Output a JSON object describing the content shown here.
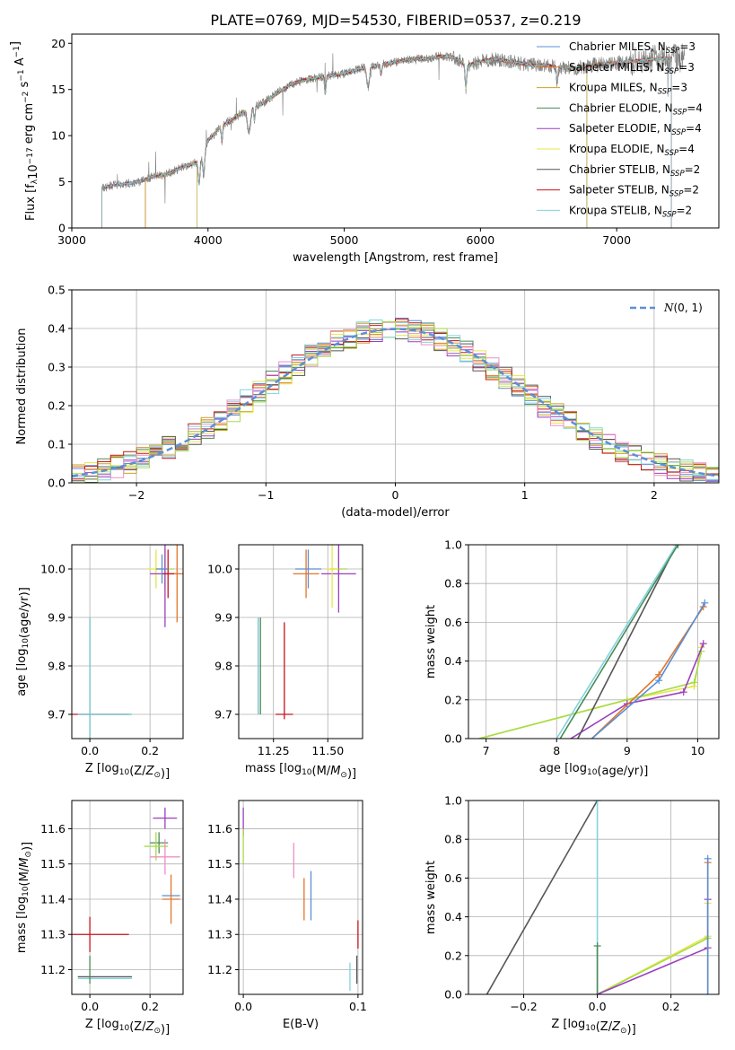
{
  "figure_title": "PLATE=0769, MJD=54530, FIBERID=0537, z=0.219",
  "colors": {
    "Chabrier MILES": "#5b8fd6",
    "Salpeter MILES": "#e3752a",
    "Kroupa MILES": "#c9a227",
    "Chabrier ELODIE": "#4b8a57",
    "Salpeter ELODIE": "#9b3fbf",
    "Kroupa ELODIE": "#e6e64a",
    "Chabrier STELIB": "#555555",
    "Salpeter STELIB": "#c4161c",
    "Kroupa STELIB": "#80d4df",
    "Salpeter MILES alt": "#ef8fc6",
    "Kroupa ELODIE alt": "#a8dc4a",
    "normal": "#5b8fd6"
  },
  "chart_data": [
    {
      "id": "spectrum",
      "type": "line",
      "xlabel": "wavelength [Angstrom, rest frame]",
      "ylabel": "Flux [f_λ10^−17 erg cm^−2 s^−1 A^−1]",
      "xlim": [
        3000,
        7750
      ],
      "ylim": [
        0,
        21
      ],
      "xticks": [
        3000,
        4000,
        5000,
        6000,
        7000
      ],
      "yticks": [
        0,
        5,
        10,
        15,
        20
      ],
      "grid": false,
      "legend_position": "upper-right",
      "legend": [
        {
          "label": "Chabrier MILES, N",
          "sub": "SSP",
          "suffix": "=3",
          "color": "#5b8fd6"
        },
        {
          "label": "Salpeter MILES, N",
          "sub": "SSP",
          "suffix": "=3",
          "color": "#e3752a"
        },
        {
          "label": "Kroupa MILES, N",
          "sub": "SSP",
          "suffix": "=3",
          "color": "#c9a227"
        },
        {
          "label": "Chabrier ELODIE, N",
          "sub": "SSP",
          "suffix": "=4",
          "color": "#4b8a57"
        },
        {
          "label": "Salpeter ELODIE, N",
          "sub": "SSP",
          "suffix": "=4",
          "color": "#9b3fbf"
        },
        {
          "label": "Kroupa ELODIE, N",
          "sub": "SSP",
          "suffix": "=4",
          "color": "#e6e64a"
        },
        {
          "label": "Chabrier STELIB, N",
          "sub": "SSP",
          "suffix": "=2",
          "color": "#555555"
        },
        {
          "label": "Salpeter STELIB, N",
          "sub": "SSP",
          "suffix": "=2",
          "color": "#c4161c"
        },
        {
          "label": "Kroupa STELIB, N",
          "sub": "SSP",
          "suffix": "=2",
          "color": "#80d4df"
        }
      ],
      "continuum": {
        "x": [
          3220,
          3300,
          3400,
          3500,
          3600,
          3700,
          3800,
          3900,
          3950,
          4000,
          4100,
          4200,
          4300,
          4400,
          4500,
          4600,
          4700,
          4800,
          4900,
          5000,
          5100,
          5200,
          5300,
          5400,
          5500,
          5600,
          5700,
          5800,
          5900,
          6000,
          6100,
          6200,
          6300,
          6400,
          6500,
          6600,
          6700,
          6800,
          6900,
          7000,
          7100,
          7200,
          7300,
          7400,
          7500
        ],
        "y": [
          4.3,
          4.6,
          4.8,
          5.0,
          5.6,
          5.8,
          6.5,
          7.0,
          7.2,
          9.5,
          11.0,
          12.0,
          13.0,
          13.5,
          14.5,
          15.5,
          16.0,
          16.3,
          16.5,
          16.7,
          17.2,
          17.5,
          17.8,
          18.0,
          18.3,
          18.3,
          18.6,
          18.5,
          17.6,
          18.0,
          18.3,
          18.1,
          17.8,
          17.6,
          17.6,
          17.4,
          17.3,
          17.6,
          17.8,
          17.9,
          18.0,
          18.2,
          18.3,
          18.4,
          18.4
        ]
      },
      "model_start": {
        "Chabrier MILES": 3540,
        "Salpeter MILES": 3540,
        "Kroupa MILES": 3540,
        "Chabrier ELODIE": 3920,
        "Salpeter ELODIE": 3920,
        "Kroupa ELODIE": 3920,
        "Chabrier STELIB": 3220,
        "Salpeter STELIB": 3220,
        "Kroupa STELIB": 3220
      },
      "model_end": {
        "Chabrier MILES": 7400,
        "Salpeter MILES": 7400,
        "Kroupa MILES": 7400,
        "Chabrier ELODIE": 6780,
        "Salpeter ELODIE": 6780,
        "Kroupa ELODIE": 6780,
        "Chabrier STELIB": 7400,
        "Salpeter STELIB": 7400,
        "Kroupa STELIB": 7400
      }
    },
    {
      "id": "residuals",
      "type": "histogram",
      "xlabel": "(data-model)/error",
      "ylabel": "Normed distribution",
      "xlim": [
        -2.5,
        2.5
      ],
      "ylim": [
        0,
        0.5
      ],
      "xticks": [
        -2,
        -1,
        0,
        1,
        2
      ],
      "yticks": [
        0.0,
        0.1,
        0.2,
        0.3,
        0.4,
        0.5
      ],
      "grid": true,
      "bin_width": 0.1,
      "legend_position": "upper-right",
      "legend": [
        {
          "label": "N(0, 1)",
          "color": "#5b8fd6",
          "style": "dashed"
        }
      ]
    },
    {
      "id": "age-vs-z",
      "type": "errorbar",
      "xlabel": "Z [log10(Z/Z⊙)]",
      "ylabel": "age  [log10(age/yr)]",
      "xlim": [
        -0.06,
        0.31
      ],
      "ylim": [
        9.65,
        10.05
      ],
      "xticks": [
        0.0,
        0.2
      ],
      "yticks": [
        9.7,
        9.8,
        9.9,
        10.0
      ],
      "grid": true,
      "points": [
        {
          "x": 0.0,
          "y": 9.7,
          "xerr": 0.0,
          "yerr": 0.2,
          "color": "#555555"
        },
        {
          "x": 0.0,
          "y": 9.7,
          "xerr": 0.0,
          "yerr": 0.2,
          "color": "#80d4df"
        },
        {
          "x": 0.0,
          "y": 9.7,
          "xerr": 0.13,
          "yerr": 0.0,
          "color": "#c4161c"
        },
        {
          "x": 0.05,
          "y": 9.7,
          "xerr": 0.09,
          "yerr": 0.0,
          "color": "#4b8a57"
        },
        {
          "x": 0.05,
          "y": 9.7,
          "xerr": 0.09,
          "yerr": 0.0,
          "color": "#80d4df"
        },
        {
          "x": 0.22,
          "y": 10.0,
          "xerr": 0.03,
          "yerr": 0.04,
          "color": "#e6e64a"
        },
        {
          "x": 0.25,
          "y": 10.0,
          "xerr": 0.03,
          "yerr": 0.04,
          "color": "#a8dc4a"
        },
        {
          "x": 0.25,
          "y": 9.99,
          "xerr": 0.05,
          "yerr": 0.11,
          "color": "#9b3fbf"
        },
        {
          "x": 0.29,
          "y": 9.99,
          "xerr": 0.02,
          "yerr": 0.1,
          "color": "#e3752a"
        },
        {
          "x": 0.26,
          "y": 9.99,
          "xerr": 0.02,
          "yerr": 0.05,
          "color": "#c4161c"
        },
        {
          "x": 0.24,
          "y": 10.0,
          "xerr": 0.02,
          "yerr": 0.03,
          "color": "#5b8fd6"
        }
      ]
    },
    {
      "id": "age-vs-mass",
      "type": "errorbar",
      "xlabel": "mass [log10(M/M⊙)]",
      "ylabel": "",
      "xlim": [
        11.09,
        11.66
      ],
      "ylim": [
        9.65,
        10.05
      ],
      "xticks": [
        11.25,
        11.5
      ],
      "yticks": [
        9.7,
        9.8,
        9.9,
        10.0
      ],
      "grid": true,
      "points": [
        {
          "x": 11.18,
          "y": 9.8,
          "xerr": 0.0,
          "yerr": 0.1,
          "color": "#555555"
        },
        {
          "x": 11.19,
          "y": 9.8,
          "xerr": 0.0,
          "yerr": 0.1,
          "color": "#4b8a57"
        },
        {
          "x": 11.18,
          "y": 9.8,
          "xerr": 0.0,
          "yerr": 0.1,
          "color": "#80d4df"
        },
        {
          "x": 11.3,
          "y": 9.79,
          "xerr": 0.0,
          "yerr": 0.1,
          "color": "#c4161c"
        },
        {
          "x": 11.3,
          "y": 9.7,
          "xerr": 0.04,
          "yerr": 0.0,
          "color": "#c4161c"
        },
        {
          "x": 11.41,
          "y": 10.0,
          "xerr": 0.06,
          "yerr": 0.04,
          "color": "#5b8fd6"
        },
        {
          "x": 11.4,
          "y": 9.99,
          "xerr": 0.06,
          "yerr": 0.05,
          "color": "#e3752a"
        },
        {
          "x": 11.55,
          "y": 10.0,
          "xerr": 0.04,
          "yerr": 0.04,
          "color": "#a8dc4a"
        },
        {
          "x": 11.55,
          "y": 9.99,
          "xerr": 0.08,
          "yerr": 0.08,
          "color": "#9b3fbf"
        },
        {
          "x": 11.52,
          "y": 10.0,
          "xerr": 0.03,
          "yerr": 0.08,
          "color": "#e6e64a"
        }
      ]
    },
    {
      "id": "massweight-vs-age",
      "type": "line",
      "xlabel": "age  [log10(age/yr)]",
      "ylabel": "mass weight",
      "xlim": [
        6.75,
        10.3
      ],
      "ylim": [
        0.0,
        1.0
      ],
      "xticks": [
        7,
        8,
        9,
        10
      ],
      "yticks": [
        0.0,
        0.2,
        0.4,
        0.6,
        0.8,
        1.0
      ],
      "grid": true,
      "series": [
        {
          "color": "#e6e64a",
          "x": [
            6.9,
            9.0,
            9.95,
            10.05
          ],
          "y": [
            0.0,
            0.2,
            0.27,
            0.47
          ]
        },
        {
          "color": "#a8dc4a",
          "x": [
            6.9,
            9.0,
            9.95,
            10.05
          ],
          "y": [
            0.0,
            0.2,
            0.29,
            0.45
          ]
        },
        {
          "color": "#9b3fbf",
          "x": [
            8.2,
            9.0,
            9.8,
            10.08
          ],
          "y": [
            0.0,
            0.18,
            0.24,
            0.49
          ]
        },
        {
          "color": "#e3752a",
          "x": [
            8.5,
            9.45,
            10.08
          ],
          "y": [
            0.0,
            0.33,
            0.68
          ]
        },
        {
          "color": "#5b8fd6",
          "x": [
            8.5,
            9.45,
            10.1
          ],
          "y": [
            0.0,
            0.3,
            0.7
          ]
        },
        {
          "color": "#555555",
          "x": [
            8.3,
            9.7
          ],
          "y": [
            0.0,
            1.0
          ]
        },
        {
          "color": "#80d4df",
          "x": [
            8.0,
            9.7
          ],
          "y": [
            0.0,
            1.0
          ]
        },
        {
          "color": "#4b8a57",
          "x": [
            8.05,
            9.72
          ],
          "y": [
            0.0,
            1.0
          ]
        }
      ]
    },
    {
      "id": "mass-vs-z",
      "type": "errorbar",
      "xlabel": "Z [log10(Z/Z⊙)]",
      "ylabel": "mass [log10(M/M⊙)]",
      "xlim": [
        -0.06,
        0.31
      ],
      "ylim": [
        11.13,
        11.68
      ],
      "xticks": [
        0.0,
        0.2
      ],
      "yticks": [
        11.2,
        11.3,
        11.4,
        11.5,
        11.6
      ],
      "grid": true,
      "points": [
        {
          "x": 0.0,
          "y": 11.3,
          "xerr": 0.13,
          "yerr": 0.05,
          "color": "#c4161c"
        },
        {
          "x": 0.05,
          "y": 11.18,
          "xerr": 0.09,
          "yerr": 0.0,
          "color": "#555555"
        },
        {
          "x": 0.05,
          "y": 11.175,
          "xerr": 0.09,
          "yerr": 0.0,
          "color": "#80d4df"
        },
        {
          "x": 0.0,
          "y": 11.2,
          "xerr": 0.0,
          "yerr": 0.04,
          "color": "#4b8a57"
        },
        {
          "x": 0.25,
          "y": 11.63,
          "xerr": 0.04,
          "yerr": 0.03,
          "color": "#9b3fbf"
        },
        {
          "x": 0.23,
          "y": 11.56,
          "xerr": 0.03,
          "yerr": 0.03,
          "color": "#4b8a57"
        },
        {
          "x": 0.22,
          "y": 11.55,
          "xerr": 0.04,
          "yerr": 0.04,
          "color": "#a8dc4a"
        },
        {
          "x": 0.25,
          "y": 11.52,
          "xerr": 0.05,
          "yerr": 0.05,
          "color": "#ef8fc6"
        },
        {
          "x": 0.27,
          "y": 11.41,
          "xerr": 0.03,
          "yerr": 0.0,
          "color": "#5b8fd6"
        },
        {
          "x": 0.27,
          "y": 11.4,
          "xerr": 0.03,
          "yerr": 0.07,
          "color": "#e3752a"
        }
      ]
    },
    {
      "id": "mass-vs-ebv",
      "type": "errorbar",
      "xlabel": "E(B-V)",
      "ylabel": "",
      "xlim": [
        -0.004,
        0.104
      ],
      "ylim": [
        11.13,
        11.68
      ],
      "xticks": [
        0.0,
        0.1
      ],
      "yticks": [
        11.2,
        11.3,
        11.4,
        11.5,
        11.6
      ],
      "grid": true,
      "points": [
        {
          "x": 0.0,
          "y": 11.62,
          "xerr": 0.0,
          "yerr": 0.04,
          "color": "#9b3fbf"
        },
        {
          "x": 0.0,
          "y": 11.55,
          "xerr": 0.0,
          "yerr": 0.05,
          "color": "#a8dc4a"
        },
        {
          "x": 0.044,
          "y": 11.51,
          "xerr": 0.0,
          "yerr": 0.05,
          "color": "#ef8fc6"
        },
        {
          "x": 0.053,
          "y": 11.4,
          "xerr": 0.0,
          "yerr": 0.06,
          "color": "#e3752a"
        },
        {
          "x": 0.059,
          "y": 11.41,
          "xerr": 0.0,
          "yerr": 0.07,
          "color": "#5b8fd6"
        },
        {
          "x": 0.093,
          "y": 11.18,
          "xerr": 0.0,
          "yerr": 0.04,
          "color": "#80d4df"
        },
        {
          "x": 0.099,
          "y": 11.2,
          "xerr": 0.0,
          "yerr": 0.04,
          "color": "#555555"
        },
        {
          "x": 0.1,
          "y": 11.3,
          "xerr": 0.0,
          "yerr": 0.04,
          "color": "#c4161c"
        }
      ]
    },
    {
      "id": "massweight-vs-z",
      "type": "line",
      "xlabel": "Z [log10(Z/Z⊙)]",
      "ylabel": "mass weight",
      "xlim": [
        -0.35,
        0.33
      ],
      "ylim": [
        0.0,
        1.0
      ],
      "xticks": [
        -0.2,
        0.0,
        0.2
      ],
      "yticks": [
        0.0,
        0.2,
        0.4,
        0.6,
        0.8,
        1.0
      ],
      "grid": true,
      "series": [
        {
          "color": "#555555",
          "x": [
            -0.3,
            0.0
          ],
          "y": [
            0.0,
            1.0
          ]
        },
        {
          "color": "#80d4df",
          "x": [
            0.0,
            0.0
          ],
          "y": [
            0.0,
            1.0
          ]
        },
        {
          "color": "#4b8a57",
          "x": [
            0.0,
            0.0
          ],
          "y": [
            0.0,
            0.25
          ]
        },
        {
          "color": "#e6e64a",
          "x": [
            0.0,
            0.3,
            0.3
          ],
          "y": [
            0.0,
            0.3,
            0.47
          ]
        },
        {
          "color": "#a8dc4a",
          "x": [
            0.0,
            0.3
          ],
          "y": [
            0.0,
            0.29
          ]
        },
        {
          "color": "#9b3fbf",
          "x": [
            0.0,
            0.3,
            0.3
          ],
          "y": [
            0.0,
            0.24,
            0.49
          ]
        },
        {
          "color": "#e3752a",
          "x": [
            0.3,
            0.3
          ],
          "y": [
            0.0,
            0.68
          ]
        },
        {
          "color": "#5b8fd6",
          "x": [
            0.3,
            0.3
          ],
          "y": [
            0.0,
            0.7
          ]
        }
      ]
    }
  ]
}
